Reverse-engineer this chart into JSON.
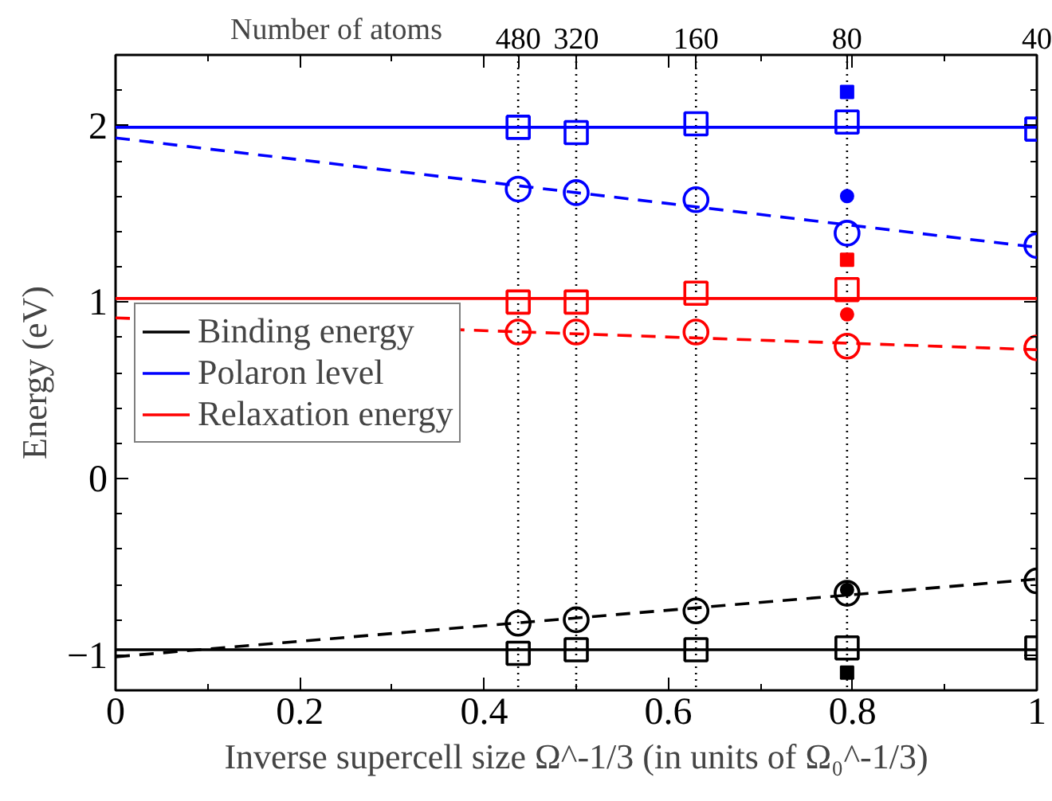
{
  "chart_data": {
    "type": "scatter",
    "xlabel": "Inverse supercell size Ω^-1/3 (in units of Ω₀^-1/3)",
    "ylabel": "Energy (eV)",
    "annotations": [
      "Number of atoms",
      {
        "text": "480",
        "x": 0.437
      },
      {
        "text": "320",
        "x": 0.5
      },
      {
        "text": "160",
        "x": 0.63
      },
      {
        "text": "80",
        "x": 0.794
      },
      {
        "text": "40",
        "x": 1
      }
    ],
    "x": [
      0.437,
      0.5,
      0.63,
      0.794,
      1
    ],
    "xlim": [
      0,
      1
    ],
    "xticks": [
      0,
      0.2,
      0.4,
      0.6,
      0.8,
      1
    ],
    "ylim": [
      -1.2,
      2.4
    ],
    "yticks": [
      -1,
      0,
      1,
      2
    ],
    "grid": false,
    "legend": "left",
    "ref_lines": [
      {
        "axis": "x",
        "value": 0.437,
        "color": "#000000",
        "line_style": "dotted"
      },
      {
        "axis": "x",
        "value": 0.5,
        "color": "#000000",
        "line_style": "dotted"
      },
      {
        "axis": "x",
        "value": 0.63,
        "color": "#000000",
        "line_style": "dotted"
      },
      {
        "axis": "x",
        "value": 0.794,
        "color": "#000000",
        "line_style": "dotted"
      }
    ],
    "series": [
      {
        "name": "Binding energy",
        "type": "line",
        "color": "#000000",
        "x": [
          0,
          1
        ],
        "values": [
          -0.97,
          -0.97
        ],
        "line_style": "solid",
        "marker": "none"
      },
      {
        "name": "Polaron level",
        "type": "line",
        "color": "#0000ff",
        "x": [
          0,
          1
        ],
        "values": [
          1.99,
          1.99
        ],
        "line_style": "solid",
        "marker": "none"
      },
      {
        "name": "Relaxation energy",
        "type": "line",
        "color": "#ff0000",
        "x": [
          0,
          1
        ],
        "values": [
          1.02,
          1.02
        ],
        "line_style": "solid",
        "marker": "none"
      },
      {
        "type": "line",
        "color": "#000000",
        "x": [
          0,
          1
        ],
        "values": [
          -1.01,
          -0.57
        ],
        "line_style": "dashed",
        "marker": "none"
      },
      {
        "type": "line",
        "color": "#0000ff",
        "x": [
          0,
          1
        ],
        "values": [
          1.93,
          1.31
        ],
        "line_style": "dashed",
        "marker": "none"
      },
      {
        "type": "line",
        "color": "#ff0000",
        "x": [
          0,
          1
        ],
        "values": [
          0.91,
          0.73
        ],
        "line_style": "dashed",
        "marker": "none"
      },
      {
        "color": "#000000",
        "marker": "square",
        "values": [
          -0.99,
          -0.97,
          -0.97,
          -0.96,
          -0.96
        ]
      },
      {
        "color": "#000000",
        "marker": "circle",
        "values": [
          -0.82,
          -0.8,
          -0.75,
          -0.65,
          -0.58
        ]
      },
      {
        "color": "#0000ff",
        "marker": "square",
        "values": [
          1.99,
          1.96,
          2.01,
          2.02,
          1.98
        ]
      },
      {
        "color": "#0000ff",
        "marker": "circle",
        "values": [
          1.64,
          1.62,
          1.58,
          1.39,
          1.32
        ]
      },
      {
        "color": "#ff0000",
        "marker": "square",
        "values": [
          1.0,
          1.0,
          1.05,
          1.07,
          null
        ]
      },
      {
        "color": "#ff0000",
        "marker": "circle",
        "values": [
          0.83,
          0.83,
          0.83,
          0.75,
          0.74
        ]
      },
      {
        "color": "#000000",
        "marker": "square",
        "x": [
          0.794
        ],
        "values": [
          -1.1
        ]
      },
      {
        "color": "#000000",
        "marker": "circle",
        "x": [
          0.794
        ],
        "values": [
          -0.63
        ]
      },
      {
        "color": "#0000ff",
        "marker": "square",
        "x": [
          0.794
        ],
        "values": [
          2.19
        ]
      },
      {
        "color": "#0000ff",
        "marker": "circle",
        "x": [
          0.794
        ],
        "values": [
          1.6
        ]
      },
      {
        "color": "#ff0000",
        "marker": "square",
        "x": [
          0.794
        ],
        "values": [
          1.24
        ]
      },
      {
        "color": "#ff0000",
        "marker": "circle",
        "x": [
          0.794
        ],
        "values": [
          0.93
        ]
      }
    ]
  }
}
